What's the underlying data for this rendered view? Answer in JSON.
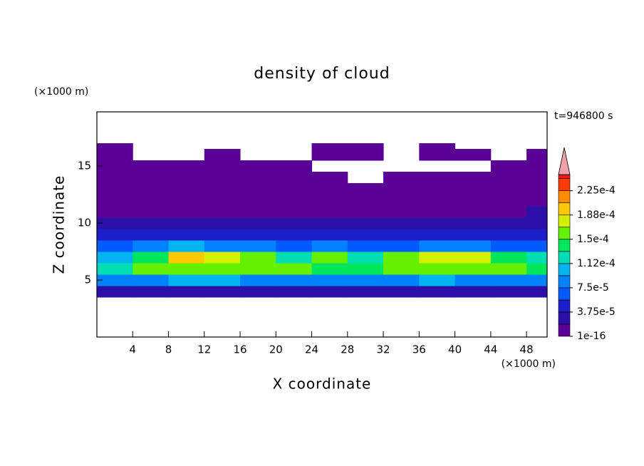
{
  "chart_data": {
    "type": "contour",
    "title": "density of cloud",
    "time_label": "t=946800 s",
    "xlabel": "X coordinate",
    "ylabel": "Z coordinate",
    "xunit": "(×1000 m)",
    "yunit": "(×1000 m)",
    "xlim": [
      0,
      50.3
    ],
    "ylim": [
      0,
      19.75
    ],
    "xticks": [
      4,
      8,
      12,
      16,
      20,
      24,
      28,
      32,
      36,
      40,
      44,
      48
    ],
    "yticks": [
      5,
      10,
      15
    ],
    "xedges": [
      0,
      4,
      8,
      12,
      16,
      20,
      24,
      28,
      32,
      36,
      40,
      44,
      48,
      50.3
    ],
    "zedges": [
      3.5,
      4.5,
      5.5,
      6.5,
      7.5,
      8.5,
      9.5,
      10.5,
      11.5,
      12.5,
      13.5,
      14.5,
      15.5,
      16.5,
      17
    ],
    "values": [
      [
        2e-05,
        2.5e-05,
        2e-05,
        2e-05,
        2.5e-05,
        2e-05,
        2e-05,
        3e-05,
        2e-05,
        2e-05,
        2.5e-05,
        2e-05,
        2e-05
      ],
      [
        8e-05,
        9e-05,
        0.0001,
        9.5e-05,
        9e-05,
        8.5e-05,
        8e-05,
        8e-05,
        9e-05,
        0.0001,
        9e-05,
        8.5e-05,
        8e-05
      ],
      [
        0.00013,
        0.000155,
        0.000165,
        0.00016,
        0.000155,
        0.00015,
        0.000145,
        0.000135,
        0.00016,
        0.000165,
        0.00016,
        0.00015,
        0.00014
      ],
      [
        0.00011,
        0.000145,
        0.00019,
        0.00018,
        0.00016,
        0.00013,
        0.00015,
        0.00012,
        0.00015,
        0.000175,
        0.00018,
        0.00014,
        0.00012
      ],
      [
        6e-05,
        8e-05,
        0.0001,
        9e-05,
        8e-05,
        6e-05,
        8e-05,
        6e-05,
        7e-05,
        9e-05,
        9e-05,
        7e-05,
        6e-05
      ],
      [
        4e-05,
        4.5e-05,
        4e-05,
        4e-05,
        4.5e-05,
        4e-05,
        4e-05,
        4e-05,
        4e-05,
        4.5e-05,
        4e-05,
        4e-05,
        4.5e-05
      ],
      [
        2.5e-05,
        2e-05,
        2e-05,
        2.5e-05,
        2e-05,
        2e-05,
        2e-05,
        2e-05,
        2.5e-05,
        2e-05,
        2.5e-05,
        2e-05,
        2.5e-05
      ],
      [
        1.5e-05,
        1e-05,
        1.5e-05,
        1e-05,
        1e-05,
        1.5e-05,
        1e-05,
        1e-05,
        1e-05,
        1.5e-05,
        1e-05,
        1.5e-05,
        2e-05
      ],
      [
        1e-05,
        5e-06,
        1e-05,
        5e-06,
        1e-05,
        5e-06,
        1e-05,
        5e-06,
        5e-06,
        1e-05,
        1e-05,
        1e-05,
        1e-05
      ],
      [
        5e-06,
        5e-06,
        5e-06,
        5e-06,
        5e-06,
        5e-06,
        5e-06,
        5e-06,
        5e-06,
        5e-06,
        5e-06,
        5e-06,
        5e-06
      ],
      [
        5e-06,
        5e-06,
        5e-06,
        5e-06,
        5e-06,
        5e-06,
        5e-06,
        null,
        5e-06,
        5e-06,
        5e-06,
        5e-06,
        5e-06
      ],
      [
        5e-06,
        5e-06,
        5e-06,
        5e-06,
        5e-06,
        5e-06,
        null,
        null,
        null,
        null,
        null,
        5e-06,
        5e-06
      ],
      [
        5e-06,
        null,
        null,
        5e-06,
        null,
        null,
        5e-06,
        5e-06,
        null,
        5e-06,
        5e-06,
        null,
        5e-06
      ],
      [
        5e-06,
        null,
        null,
        null,
        null,
        null,
        5e-06,
        5e-06,
        null,
        5e-06,
        null,
        null,
        null
      ]
    ],
    "levels": [
      1e-16,
      1.875e-05,
      3.75e-05,
      5.625e-05,
      7.5e-05,
      9.375e-05,
      0.0001125,
      0.00013125,
      0.00015,
      0.00016875,
      0.0001875,
      0.00020625,
      0.000225,
      0.00024375
    ],
    "colors": [
      "#5a0096",
      "#2a0fa8",
      "#1e1ec8",
      "#005aff",
      "#0082ff",
      "#00b4f0",
      "#00dcb4",
      "#00e65a",
      "#64f000",
      "#d2f000",
      "#ffc800",
      "#ff8c00",
      "#ff3c00",
      "#e61e1e"
    ],
    "clim": [
      1e-16,
      0.00025
    ],
    "extend_color": "#f0a0a8",
    "cticks": [
      {
        "value": 1e-16,
        "label": "1e-16"
      },
      {
        "value": 3.75e-05,
        "label": "3.75e-5"
      },
      {
        "value": 7.5e-05,
        "label": "7.5e-5"
      },
      {
        "value": 0.0001125,
        "label": "1.12e-4"
      },
      {
        "value": 0.00015,
        "label": "1.5e-4"
      },
      {
        "value": 0.0001875,
        "label": "1.88e-4"
      },
      {
        "value": 0.000225,
        "label": "2.25e-4"
      }
    ]
  }
}
